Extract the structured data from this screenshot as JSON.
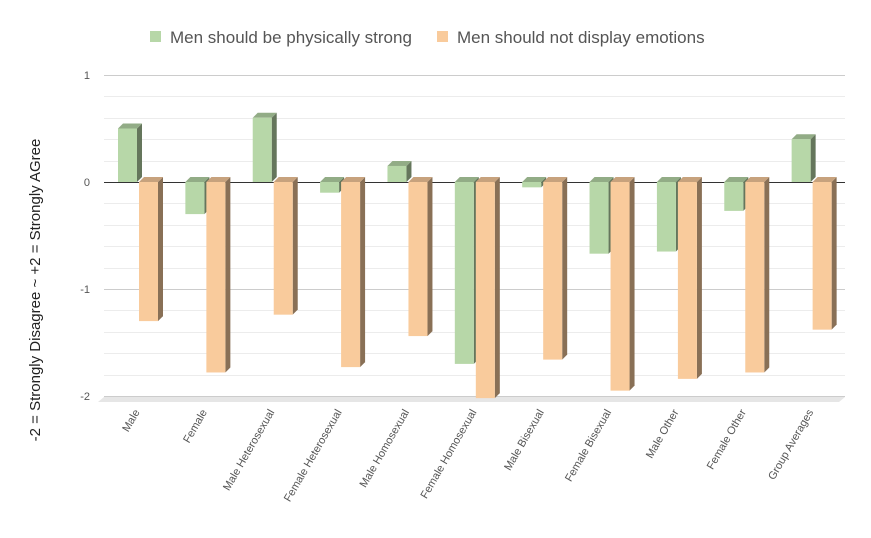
{
  "chart_data": {
    "type": "bar",
    "title": "",
    "xlabel": "",
    "ylabel": "-2 = Strongly Disagree ~ +2 = Strongly AGree",
    "ylim": [
      -2,
      1
    ],
    "yticks": [
      "1",
      "0",
      "-1",
      "-2"
    ],
    "grid": true,
    "legend_position": "top",
    "style": "3d-column",
    "categories": [
      "Male",
      "Female",
      "Male Heterosexual",
      "Female Heterosexual",
      "Male Homosexual",
      "Female Homosexual",
      "Male Bisexual",
      "Female Bisexual",
      "Male Other",
      "Female Other",
      "Group Averages"
    ],
    "series": [
      {
        "name": "Men should be physically strong",
        "color": "#b7d7a8",
        "values": [
          0.5,
          -0.3,
          0.6,
          -0.1,
          0.15,
          -1.7,
          -0.05,
          -0.67,
          -0.65,
          -0.27,
          0.4
        ]
      },
      {
        "name": "Men should not display emotions",
        "color": "#f9cb9c",
        "values": [
          -1.3,
          -1.78,
          -1.24,
          -1.73,
          -1.44,
          -2.02,
          -1.66,
          -1.95,
          -1.84,
          -1.78,
          -1.38
        ]
      }
    ]
  }
}
